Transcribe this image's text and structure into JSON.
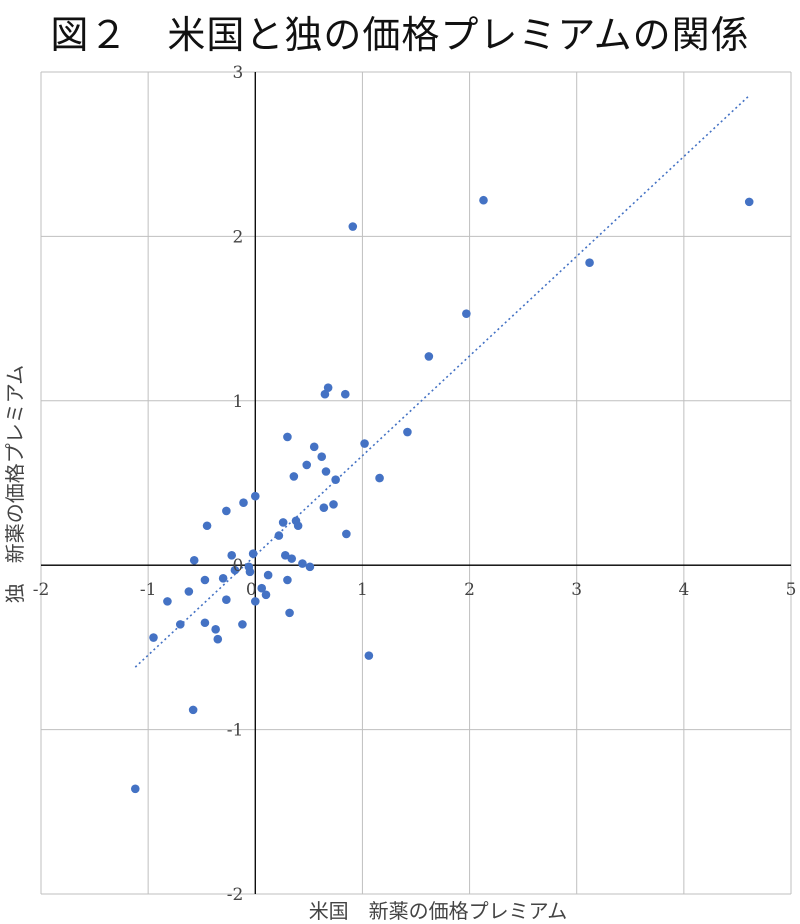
{
  "chart_data": {
    "type": "scatter",
    "title": "図２　米国と独の価格プレミアムの関係",
    "xlabel": "米国　新薬の価格プレミアム",
    "ylabel": "独　新薬の価格プレミアム",
    "xlim": [
      -2,
      5
    ],
    "ylim": [
      -2,
      3
    ],
    "xticks": [
      "-2",
      "-1",
      "0",
      "1",
      "2",
      "3",
      "4",
      "5"
    ],
    "yticks": [
      "-2",
      "-1",
      "0",
      "1",
      "2",
      "3"
    ],
    "grid": true,
    "legend": "none",
    "colors": {
      "points": "#4472c4",
      "trendline": "#4472c4",
      "grid": "#bfbfbf",
      "axis": "#000000"
    },
    "trendline": {
      "style": "dotted",
      "x": [
        -1.12,
        4.6
      ],
      "y": [
        -0.62,
        2.85
      ]
    },
    "points": [
      {
        "x": -1.12,
        "y": -1.36
      },
      {
        "x": -0.58,
        "y": -0.88
      },
      {
        "x": -0.95,
        "y": -0.44
      },
      {
        "x": -0.82,
        "y": -0.22
      },
      {
        "x": -0.7,
        "y": -0.36
      },
      {
        "x": -0.62,
        "y": -0.16
      },
      {
        "x": -0.57,
        "y": 0.03
      },
      {
        "x": -0.47,
        "y": -0.09
      },
      {
        "x": -0.47,
        "y": -0.35
      },
      {
        "x": -0.45,
        "y": 0.24
      },
      {
        "x": -0.37,
        "y": -0.39
      },
      {
        "x": -0.35,
        "y": -0.45
      },
      {
        "x": -0.3,
        "y": -0.08
      },
      {
        "x": -0.27,
        "y": -0.21
      },
      {
        "x": -0.27,
        "y": 0.33
      },
      {
        "x": -0.22,
        "y": 0.06
      },
      {
        "x": -0.19,
        "y": -0.03
      },
      {
        "x": -0.12,
        "y": -0.36
      },
      {
        "x": -0.11,
        "y": 0.38
      },
      {
        "x": -0.06,
        "y": -0.01
      },
      {
        "x": -0.05,
        "y": -0.04
      },
      {
        "x": -0.02,
        "y": 0.07
      },
      {
        "x": 0.0,
        "y": -0.22
      },
      {
        "x": 0.0,
        "y": 0.42
      },
      {
        "x": 0.06,
        "y": -0.14
      },
      {
        "x": 0.1,
        "y": -0.18
      },
      {
        "x": 0.12,
        "y": -0.06
      },
      {
        "x": 0.22,
        "y": 0.18
      },
      {
        "x": 0.26,
        "y": 0.26
      },
      {
        "x": 0.28,
        "y": 0.06
      },
      {
        "x": 0.3,
        "y": -0.09
      },
      {
        "x": 0.3,
        "y": 0.78
      },
      {
        "x": 0.32,
        "y": -0.29
      },
      {
        "x": 0.34,
        "y": 0.04
      },
      {
        "x": 0.36,
        "y": 0.54
      },
      {
        "x": 0.38,
        "y": 0.27
      },
      {
        "x": 0.4,
        "y": 0.24
      },
      {
        "x": 0.44,
        "y": 0.01
      },
      {
        "x": 0.48,
        "y": 0.61
      },
      {
        "x": 0.51,
        "y": -0.01
      },
      {
        "x": 0.55,
        "y": 0.72
      },
      {
        "x": 0.62,
        "y": 0.66
      },
      {
        "x": 0.64,
        "y": 0.35
      },
      {
        "x": 0.65,
        "y": 1.04
      },
      {
        "x": 0.66,
        "y": 0.57
      },
      {
        "x": 0.68,
        "y": 1.08
      },
      {
        "x": 0.73,
        "y": 0.37
      },
      {
        "x": 0.75,
        "y": 0.52
      },
      {
        "x": 0.84,
        "y": 1.04
      },
      {
        "x": 0.85,
        "y": 0.19
      },
      {
        "x": 0.91,
        "y": 2.06
      },
      {
        "x": 1.02,
        "y": 0.74
      },
      {
        "x": 1.06,
        "y": -0.55
      },
      {
        "x": 1.16,
        "y": 0.53
      },
      {
        "x": 1.42,
        "y": 0.81
      },
      {
        "x": 1.62,
        "y": 1.27
      },
      {
        "x": 1.97,
        "y": 1.53
      },
      {
        "x": 2.13,
        "y": 2.22
      },
      {
        "x": 3.12,
        "y": 1.84
      },
      {
        "x": 4.61,
        "y": 2.21
      }
    ]
  }
}
